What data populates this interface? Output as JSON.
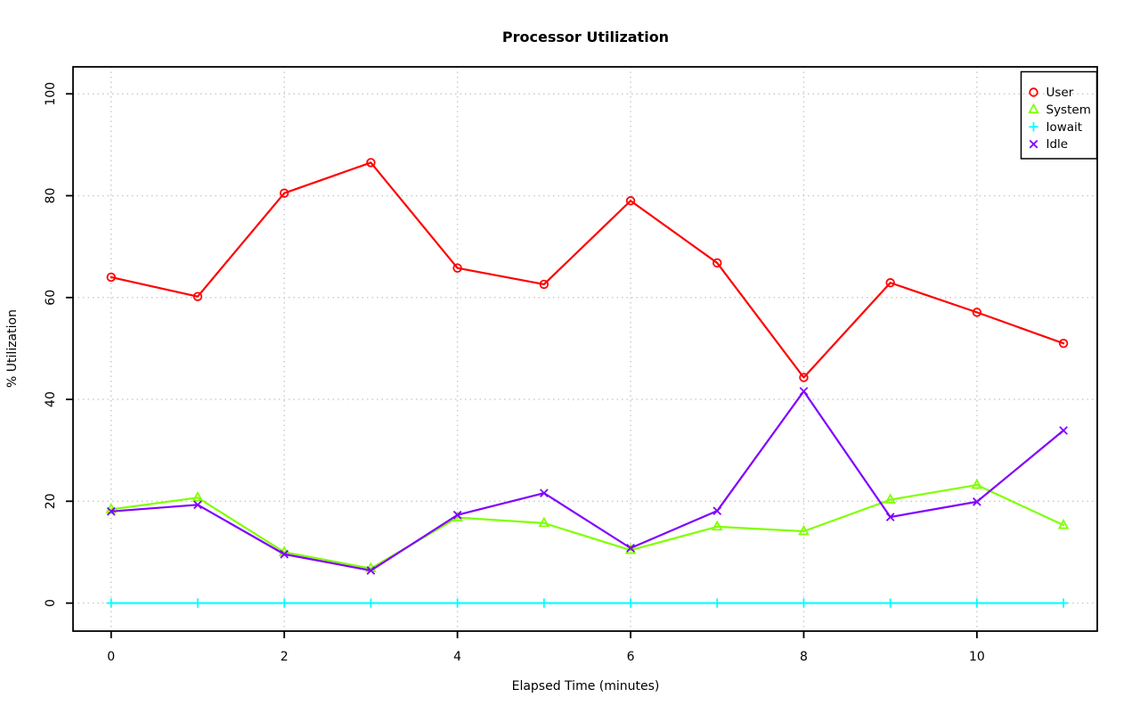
{
  "chart_data": {
    "type": "line",
    "title": "Processor Utilization",
    "xlabel": "Elapsed Time (minutes)",
    "ylabel": "% Utilization",
    "x": [
      0,
      1,
      2,
      3,
      4,
      5,
      6,
      7,
      8,
      9,
      10,
      11
    ],
    "xticks": [
      0,
      2,
      4,
      6,
      8,
      10
    ],
    "yticks": [
      0,
      20,
      40,
      60,
      80,
      100
    ],
    "xlim": [
      -0.44,
      11.39
    ],
    "ylim": [
      -5.5,
      105.3
    ],
    "grid": true,
    "grid_style": "dotted",
    "legend_position": "top-right",
    "series": [
      {
        "name": "User",
        "color": "#FF0000",
        "marker": "circle",
        "values": [
          64,
          60.2,
          80.5,
          86.5,
          65.8,
          62.6,
          79,
          66.8,
          44.3,
          62.9,
          57.1,
          51
        ]
      },
      {
        "name": "System",
        "color": "#80FF00",
        "marker": "triangle",
        "values": [
          18.4,
          20.7,
          10,
          6.8,
          16.8,
          15.7,
          10.4,
          15,
          14.1,
          20.3,
          23.2,
          15.3
        ]
      },
      {
        "name": "Iowait",
        "color": "#00FFFF",
        "marker": "plus",
        "values": [
          0,
          0,
          0,
          0,
          0,
          0,
          0,
          0,
          0,
          0,
          0,
          0
        ]
      },
      {
        "name": "Idle",
        "color": "#8000FF",
        "marker": "x",
        "values": [
          18,
          19.3,
          9.6,
          6.4,
          17.3,
          21.6,
          10.8,
          18.1,
          41.6,
          16.9,
          19.9,
          33.9
        ]
      }
    ],
    "colors": {
      "axis": "#000000",
      "grid": "#c8c8c8",
      "background": "#ffffff"
    }
  }
}
